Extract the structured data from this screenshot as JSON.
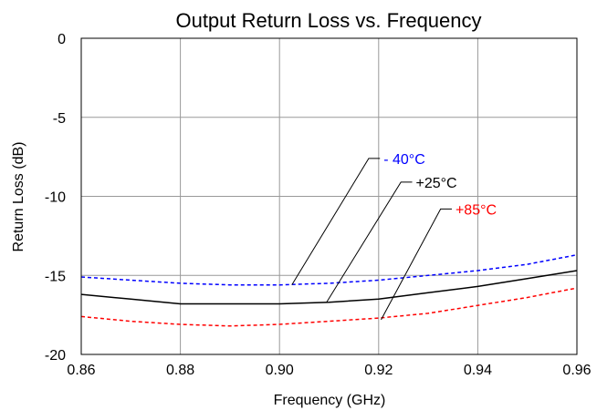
{
  "chart_data": {
    "type": "line",
    "title": "Output Return Loss vs. Frequency",
    "xlabel": "Frequency (GHz)",
    "ylabel": "Return Loss (dB)",
    "xlim": [
      0.86,
      0.96
    ],
    "ylim": [
      -20,
      0
    ],
    "x_ticks": [
      "0.86",
      "0.88",
      "0.90",
      "0.92",
      "0.94",
      "0.96"
    ],
    "y_ticks": [
      "0",
      "-5",
      "-10",
      "-15",
      "-20"
    ],
    "grid": true,
    "series": [
      {
        "name": "- 40°C",
        "color": "#0000ff",
        "style": "dashed",
        "x": [
          0.86,
          0.87,
          0.88,
          0.89,
          0.9,
          0.91,
          0.92,
          0.93,
          0.94,
          0.95,
          0.96
        ],
        "y": [
          -15.1,
          -15.3,
          -15.5,
          -15.6,
          -15.6,
          -15.5,
          -15.3,
          -15.0,
          -14.7,
          -14.3,
          -13.7
        ]
      },
      {
        "name": "+25°C",
        "color": "#000000",
        "style": "solid",
        "x": [
          0.86,
          0.87,
          0.88,
          0.89,
          0.9,
          0.91,
          0.92,
          0.93,
          0.94,
          0.95,
          0.96
        ],
        "y": [
          -16.2,
          -16.5,
          -16.8,
          -16.8,
          -16.8,
          -16.7,
          -16.5,
          -16.1,
          -15.7,
          -15.2,
          -14.7
        ]
      },
      {
        "name": "+85°C",
        "color": "#ff0000",
        "style": "dashed",
        "x": [
          0.86,
          0.87,
          0.88,
          0.89,
          0.9,
          0.91,
          0.92,
          0.93,
          0.94,
          0.95,
          0.96
        ],
        "y": [
          -17.6,
          -17.9,
          -18.1,
          -18.2,
          -18.1,
          -17.9,
          -17.7,
          -17.4,
          -16.9,
          -16.4,
          -15.8
        ]
      }
    ],
    "annotations": [
      {
        "series": 0,
        "text": "- 40°C",
        "line_from": [
          0.9025,
          -15.6
        ],
        "line_to": [
          0.918,
          -7.6
        ],
        "label_at": [
          0.921,
          -7.6
        ]
      },
      {
        "series": 1,
        "text": "+25°C",
        "line_from": [
          0.9095,
          -16.7
        ],
        "line_to": [
          0.9245,
          -9.1
        ],
        "label_at": [
          0.9275,
          -9.1
        ]
      },
      {
        "series": 2,
        "text": "+85°C",
        "line_from": [
          0.9205,
          -17.8
        ],
        "line_to": [
          0.9325,
          -10.8
        ],
        "label_at": [
          0.9355,
          -10.8
        ]
      }
    ]
  }
}
